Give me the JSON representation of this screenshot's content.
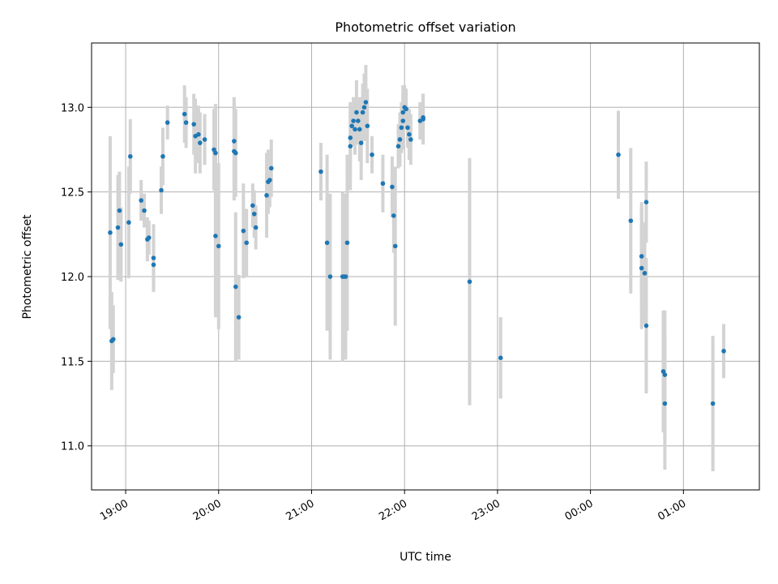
{
  "chart_data": {
    "type": "scatter",
    "title": "Photometric offset variation",
    "xlabel": "UTC time",
    "ylabel": "Photometric offset",
    "x_unit": "UTC time of day (HH:MM), crossing midnight after 23:59",
    "xlim": [
      "18:38",
      "01:49"
    ],
    "ylim": [
      10.74,
      13.38
    ],
    "x_ticks": [
      "19:00",
      "20:00",
      "21:00",
      "22:00",
      "23:00",
      "00:00",
      "01:00"
    ],
    "y_ticks": [
      "11.0",
      "11.5",
      "12.0",
      "12.5",
      "13.0"
    ],
    "grid": true,
    "colors": {
      "points": "#1f77b4",
      "errorbars": "#d3d3d3",
      "grid": "#b0b0b0"
    },
    "points": [
      {
        "t": "18:50",
        "y": 12.26,
        "err": 0.57
      },
      {
        "t": "18:51",
        "y": 11.62,
        "err": 0.29
      },
      {
        "t": "18:52",
        "y": 11.63,
        "err": 0.2
      },
      {
        "t": "18:55",
        "y": 12.29,
        "err": 0.31
      },
      {
        "t": "18:56",
        "y": 12.39,
        "err": 0.23
      },
      {
        "t": "18:57",
        "y": 12.19,
        "err": 0.22
      },
      {
        "t": "19:02",
        "y": 12.32,
        "err": 0.33
      },
      {
        "t": "19:03",
        "y": 12.71,
        "err": 0.22
      },
      {
        "t": "19:10",
        "y": 12.45,
        "err": 0.12
      },
      {
        "t": "19:12",
        "y": 12.39,
        "err": 0.1
      },
      {
        "t": "19:14",
        "y": 12.22,
        "err": 0.13
      },
      {
        "t": "19:15",
        "y": 12.23,
        "err": 0.1
      },
      {
        "t": "19:18",
        "y": 12.07,
        "err": 0.16
      },
      {
        "t": "19:18",
        "y": 12.11,
        "err": 0.2
      },
      {
        "t": "19:23",
        "y": 12.51,
        "err": 0.14
      },
      {
        "t": "19:24",
        "y": 12.71,
        "err": 0.17
      },
      {
        "t": "19:27",
        "y": 12.91,
        "err": 0.1
      },
      {
        "t": "19:38",
        "y": 12.96,
        "err": 0.17
      },
      {
        "t": "19:39",
        "y": 12.91,
        "err": 0.15
      },
      {
        "t": "19:44",
        "y": 12.9,
        "err": 0.18
      },
      {
        "t": "19:45",
        "y": 12.83,
        "err": 0.22
      },
      {
        "t": "19:47",
        "y": 12.84,
        "err": 0.17
      },
      {
        "t": "19:48",
        "y": 12.79,
        "err": 0.18
      },
      {
        "t": "19:51",
        "y": 12.81,
        "err": 0.15
      },
      {
        "t": "19:57",
        "y": 12.75,
        "err": 0.24
      },
      {
        "t": "19:58",
        "y": 12.73,
        "err": 0.29
      },
      {
        "t": "19:58",
        "y": 12.24,
        "err": 0.48
      },
      {
        "t": "20:00",
        "y": 12.18,
        "err": 0.49
      },
      {
        "t": "20:10",
        "y": 12.74,
        "err": 0.29
      },
      {
        "t": "20:10",
        "y": 12.8,
        "err": 0.26
      },
      {
        "t": "20:11",
        "y": 12.73,
        "err": 0.26
      },
      {
        "t": "20:11",
        "y": 11.94,
        "err": 0.44
      },
      {
        "t": "20:13",
        "y": 11.76,
        "err": 0.25
      },
      {
        "t": "20:16",
        "y": 12.27,
        "err": 0.28
      },
      {
        "t": "20:18",
        "y": 12.2,
        "err": 0.2
      },
      {
        "t": "20:22",
        "y": 12.42,
        "err": 0.13
      },
      {
        "t": "20:23",
        "y": 12.37,
        "err": 0.14
      },
      {
        "t": "20:24",
        "y": 12.29,
        "err": 0.13
      },
      {
        "t": "20:31",
        "y": 12.48,
        "err": 0.25
      },
      {
        "t": "20:32",
        "y": 12.56,
        "err": 0.19
      },
      {
        "t": "20:33",
        "y": 12.57,
        "err": 0.16
      },
      {
        "t": "20:34",
        "y": 12.64,
        "err": 0.17
      },
      {
        "t": "21:06",
        "y": 12.62,
        "err": 0.17
      },
      {
        "t": "21:10",
        "y": 12.2,
        "err": 0.52
      },
      {
        "t": "21:12",
        "y": 12.0,
        "err": 0.49
      },
      {
        "t": "21:20",
        "y": 12.0,
        "err": 0.5
      },
      {
        "t": "21:21",
        "y": 12.0,
        "err": 0.48
      },
      {
        "t": "21:22",
        "y": 12.0,
        "err": 0.49
      },
      {
        "t": "21:23",
        "y": 12.2,
        "err": 0.52
      },
      {
        "t": "21:25",
        "y": 12.77,
        "err": 0.26
      },
      {
        "t": "21:25",
        "y": 12.82,
        "err": 0.2
      },
      {
        "t": "21:26",
        "y": 12.89,
        "err": 0.12
      },
      {
        "t": "21:27",
        "y": 12.92,
        "err": 0.14
      },
      {
        "t": "21:28",
        "y": 12.87,
        "err": 0.15
      },
      {
        "t": "21:29",
        "y": 12.97,
        "err": 0.19
      },
      {
        "t": "21:30",
        "y": 12.92,
        "err": 0.11
      },
      {
        "t": "21:31",
        "y": 12.87,
        "err": 0.19
      },
      {
        "t": "21:32",
        "y": 12.79,
        "err": 0.22
      },
      {
        "t": "21:33",
        "y": 12.97,
        "err": 0.17
      },
      {
        "t": "21:34",
        "y": 13.0,
        "err": 0.2
      },
      {
        "t": "21:35",
        "y": 13.03,
        "err": 0.22
      },
      {
        "t": "21:36",
        "y": 12.89,
        "err": 0.22
      },
      {
        "t": "21:39",
        "y": 12.72,
        "err": 0.11
      },
      {
        "t": "21:46",
        "y": 12.55,
        "err": 0.17
      },
      {
        "t": "21:52",
        "y": 12.53,
        "err": 0.18
      },
      {
        "t": "21:53",
        "y": 12.36,
        "err": 0.22
      },
      {
        "t": "21:54",
        "y": 12.18,
        "err": 0.47
      },
      {
        "t": "21:56",
        "y": 12.77,
        "err": 0.13
      },
      {
        "t": "21:57",
        "y": 12.81,
        "err": 0.16
      },
      {
        "t": "21:58",
        "y": 12.88,
        "err": 0.15
      },
      {
        "t": "21:59",
        "y": 12.92,
        "err": 0.17
      },
      {
        "t": "21:59",
        "y": 12.97,
        "err": 0.16
      },
      {
        "t": "22:00",
        "y": 13.0,
        "err": 0.13
      },
      {
        "t": "22:01",
        "y": 12.99,
        "err": 0.12
      },
      {
        "t": "22:02",
        "y": 12.88,
        "err": 0.12
      },
      {
        "t": "22:03",
        "y": 12.84,
        "err": 0.15
      },
      {
        "t": "22:04",
        "y": 12.81,
        "err": 0.15
      },
      {
        "t": "22:10",
        "y": 12.92,
        "err": 0.11
      },
      {
        "t": "22:12",
        "y": 12.93,
        "err": 0.15
      },
      {
        "t": "22:12",
        "y": 12.94,
        "err": 0.14
      },
      {
        "t": "22:42",
        "y": 11.97,
        "err": 0.73
      },
      {
        "t": "23:02",
        "y": 11.52,
        "err": 0.24
      },
      {
        "t": "00:18",
        "y": 12.72,
        "err": 0.26
      },
      {
        "t": "00:26",
        "y": 12.33,
        "err": 0.43
      },
      {
        "t": "00:33",
        "y": 12.12,
        "err": 0.32
      },
      {
        "t": "00:33",
        "y": 12.05,
        "err": 0.36
      },
      {
        "t": "00:35",
        "y": 12.02,
        "err": 0.3
      },
      {
        "t": "00:36",
        "y": 12.44,
        "err": 0.24
      },
      {
        "t": "00:36",
        "y": 11.71,
        "err": 0.4
      },
      {
        "t": "00:47",
        "y": 11.44,
        "err": 0.36
      },
      {
        "t": "00:48",
        "y": 11.42,
        "err": 0.38
      },
      {
        "t": "00:48",
        "y": 11.25,
        "err": 0.39
      },
      {
        "t": "01:19",
        "y": 11.25,
        "err": 0.4
      },
      {
        "t": "01:26",
        "y": 11.56,
        "err": 0.16
      }
    ]
  }
}
